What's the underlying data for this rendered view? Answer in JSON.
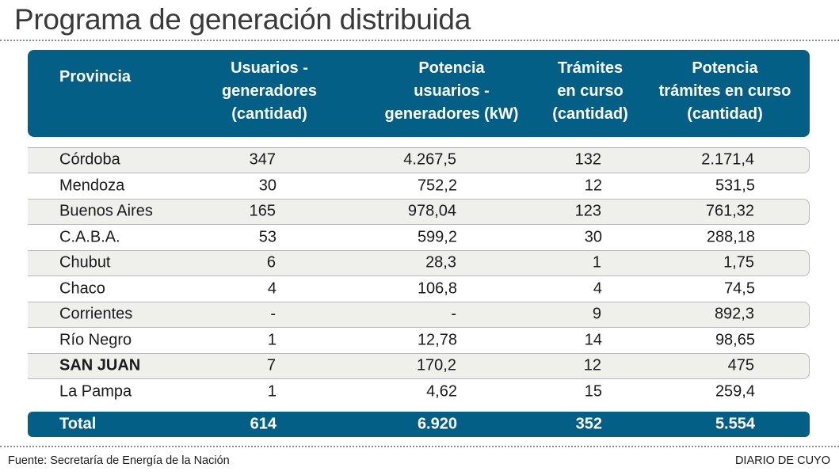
{
  "title": "Programa de generación distribuida",
  "table": {
    "headers": [
      "Provincia",
      "Usuarios -\ngeneradores\n(cantidad)",
      "Potencia\nusuarios -\ngeneradores (kW)",
      "Trámites\nen curso\n(cantidad)",
      "Potencia\ntrámites en curso\n(cantidad)"
    ],
    "rows": [
      [
        "Córdoba",
        "347",
        "4.267,5",
        "132",
        "2.171,4"
      ],
      [
        "Mendoza",
        "30",
        "752,2",
        "12",
        "531,5"
      ],
      [
        "Buenos Aires",
        "165",
        "978,04",
        "123",
        "761,32"
      ],
      [
        "C.A.B.A.",
        "53",
        "599,2",
        "30",
        "288,18"
      ],
      [
        "Chubut",
        "6",
        "28,3",
        "1",
        "1,75"
      ],
      [
        "Chaco",
        "4",
        "106,8",
        "4",
        "74,5"
      ],
      [
        "Corrientes",
        "-",
        "-",
        "9",
        "892,3"
      ],
      [
        "Río Negro",
        "1",
        "12,78",
        "14",
        "98,65"
      ],
      [
        "SAN JUAN",
        "7",
        "170,2",
        "12",
        "475"
      ],
      [
        "La Pampa",
        "1",
        "4,62",
        "15",
        "259,4"
      ]
    ],
    "highlighted_row": "SAN JUAN",
    "total": [
      "Total",
      "614",
      "6.920",
      "352",
      "5.554"
    ]
  },
  "footer": {
    "source": "Fuente: Secretaría de Energía de la Nación",
    "brand": "DIARIO DE CUYO"
  },
  "colors": {
    "header_bg": "#035f86",
    "shaded_row_bg": "#efefeb",
    "text": "#1a1a1a"
  },
  "chart_data": {
    "type": "table",
    "title": "Programa de generación distribuida",
    "columns": [
      "Provincia",
      "Usuarios - generadores (cantidad)",
      "Potencia usuarios - generadores (kW)",
      "Trámites en curso (cantidad)",
      "Potencia trámites en curso (cantidad)"
    ],
    "rows": [
      {
        "provincia": "Córdoba",
        "usuarios_generadores": 347,
        "potencia_usuarios_kw": 4267.5,
        "tramites_en_curso": 132,
        "potencia_tramites": 2171.4
      },
      {
        "provincia": "Mendoza",
        "usuarios_generadores": 30,
        "potencia_usuarios_kw": 752.2,
        "tramites_en_curso": 12,
        "potencia_tramites": 531.5
      },
      {
        "provincia": "Buenos Aires",
        "usuarios_generadores": 165,
        "potencia_usuarios_kw": 978.04,
        "tramites_en_curso": 123,
        "potencia_tramites": 761.32
      },
      {
        "provincia": "C.A.B.A.",
        "usuarios_generadores": 53,
        "potencia_usuarios_kw": 599.2,
        "tramites_en_curso": 30,
        "potencia_tramites": 288.18
      },
      {
        "provincia": "Chubut",
        "usuarios_generadores": 6,
        "potencia_usuarios_kw": 28.3,
        "tramites_en_curso": 1,
        "potencia_tramites": 1.75
      },
      {
        "provincia": "Chaco",
        "usuarios_generadores": 4,
        "potencia_usuarios_kw": 106.8,
        "tramites_en_curso": 4,
        "potencia_tramites": 74.5
      },
      {
        "provincia": "Corrientes",
        "usuarios_generadores": null,
        "potencia_usuarios_kw": null,
        "tramites_en_curso": 9,
        "potencia_tramites": 892.3
      },
      {
        "provincia": "Río Negro",
        "usuarios_generadores": 1,
        "potencia_usuarios_kw": 12.78,
        "tramites_en_curso": 14,
        "potencia_tramites": 98.65
      },
      {
        "provincia": "SAN JUAN",
        "usuarios_generadores": 7,
        "potencia_usuarios_kw": 170.2,
        "tramites_en_curso": 12,
        "potencia_tramites": 475
      },
      {
        "provincia": "La Pampa",
        "usuarios_generadores": 1,
        "potencia_usuarios_kw": 4.62,
        "tramites_en_curso": 15,
        "potencia_tramites": 259.4
      }
    ],
    "total": {
      "usuarios_generadores": 614,
      "potencia_usuarios_kw": 6920,
      "tramites_en_curso": 352,
      "potencia_tramites": 5554
    },
    "source": "Fuente: Secretaría de Energía de la Nación"
  }
}
